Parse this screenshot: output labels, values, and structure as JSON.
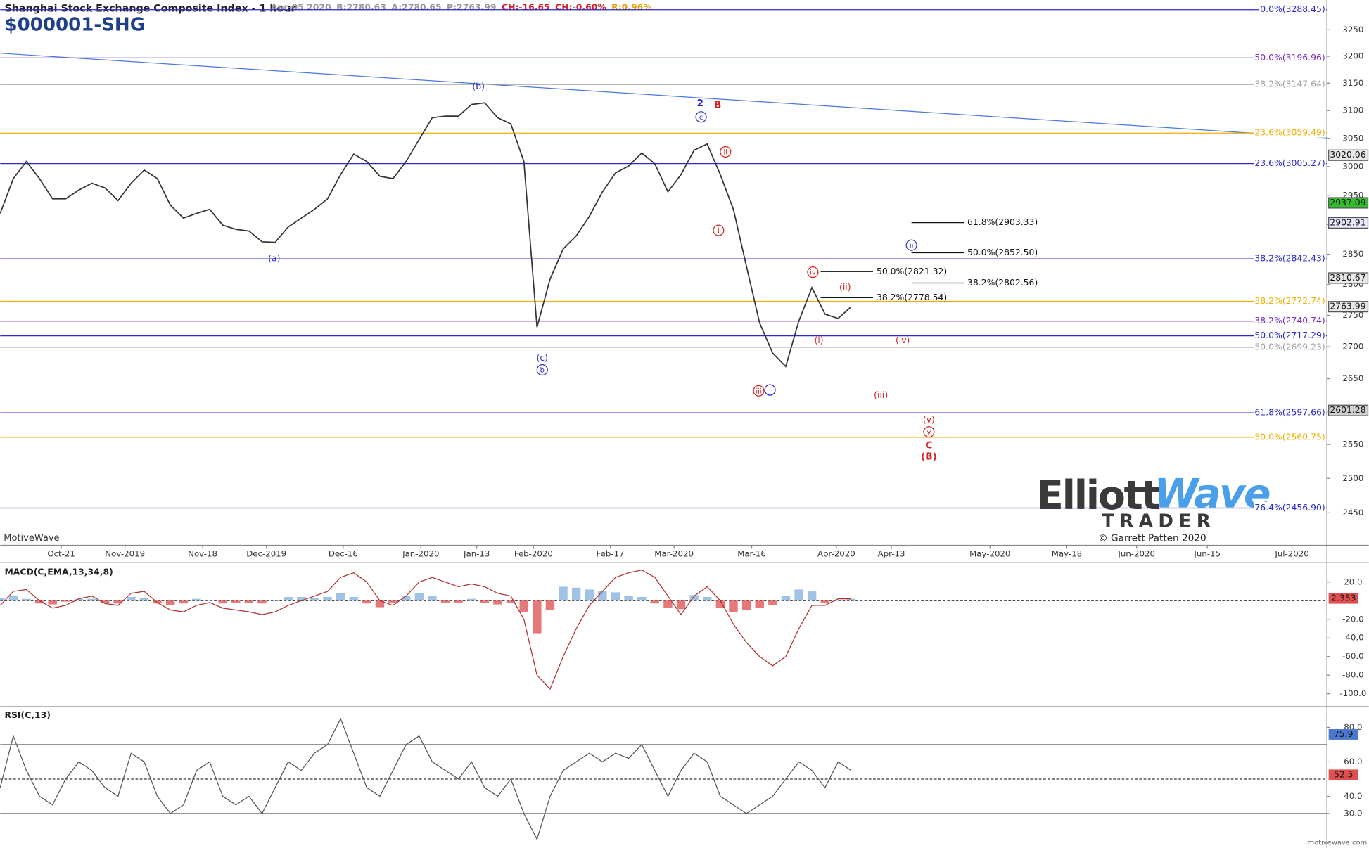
{
  "chart_data": [
    {
      "type": "line",
      "title": "Shanghai Stock Exchange Composite Index - 1 hour",
      "subtitle": "$000001-SHG",
      "quote": [
        {
          "text": "Apr-05 2020",
          "color": "#999999"
        },
        {
          "text": "B:2780.63",
          "color": "#999999"
        },
        {
          "text": "A:2780.65",
          "color": "#999999"
        },
        {
          "text": "P:2763.99",
          "color": "#999999"
        },
        {
          "text": "CH:-16.65",
          "color": "#d42020"
        },
        {
          "text": "CH:-0.60%",
          "color": "#d42020"
        },
        {
          "text": "R:0.96%",
          "color": "#e0a000"
        }
      ],
      "source": "MotiveWave",
      "log_scale": true,
      "ylim": [
        2404,
        3302
      ],
      "yticks": [
        2450,
        2500,
        2550,
        2600,
        2650,
        2700,
        2750,
        2800,
        2850,
        2900,
        2950,
        3000,
        3050,
        3100,
        3150,
        3200,
        3250
      ],
      "x_tick_labels": [
        "Oct-21",
        "Nov-2019",
        "Nov-18",
        "Dec-2019",
        "Dec-16",
        "Jan-2020",
        "Jan-13",
        "Feb-2020",
        "Feb-17",
        "Mar-2020",
        "Mar-16",
        "Apr-2020",
        "Apr-13",
        "May-2020",
        "May-18",
        "Jun-2020",
        "Jun-15",
        "Jul-2020"
      ],
      "series": [
        {
          "color": "#333333",
          "values": [
            2919,
            2979,
            3009,
            2979,
            2944,
            2944,
            2959,
            2971,
            2963,
            2941,
            2971,
            2994,
            2979,
            2933,
            2911,
            2919,
            2926,
            2899,
            2892,
            2889,
            2871,
            2870,
            2896,
            2911,
            2926,
            2944,
            2986,
            3022,
            3009,
            2983,
            2979,
            3009,
            3048,
            3087,
            3090,
            3090,
            3111,
            3114,
            3087,
            3076,
            3009,
            2731,
            2809,
            2859,
            2881,
            2914,
            2956,
            2989,
            3001,
            3024,
            3005,
            2956,
            2986,
            3029,
            3040,
            2986,
            2926,
            2830,
            2738,
            2690,
            2669,
            2741,
            2795,
            2752,
            2745,
            2764
          ]
        }
      ],
      "levels": [
        {
          "label": "0.0%(3288.45)",
          "value": 3288.45,
          "color": "#2a2ad0"
        },
        {
          "label": "50.0%(3196.96)",
          "value": 3196.96,
          "color": "#7a2cc0"
        },
        {
          "label": "38.2%(3147.64)",
          "value": 3147.64,
          "color": "#a0a0a0"
        },
        {
          "label": "23.6%(3059.49)",
          "value": 3059.49,
          "color": "#f0b000"
        },
        {
          "label": "23.6%(3005.27)",
          "value": 3005.27,
          "color": "#2a2ad0"
        },
        {
          "label": "38.2%(2842.43)",
          "value": 2842.43,
          "color": "#2a2ad0"
        },
        {
          "label": "38.2%(2772.74)",
          "value": 2772.74,
          "color": "#f0b000"
        },
        {
          "label": "38.2%(2740.74)",
          "value": 2740.74,
          "color": "#7a2cc0"
        },
        {
          "label": "50.0%(2717.29)",
          "value": 2717.29,
          "color": "#2a2ad0"
        },
        {
          "label": "50.0%(2699.23)",
          "value": 2699.23,
          "color": "#a0a0a0"
        },
        {
          "label": "61.8%(2597.66)",
          "value": 2597.66,
          "color": "#2a2ad0"
        },
        {
          "label": "50.0%(2560.75)",
          "value": 2560.75,
          "color": "#f0b000"
        },
        {
          "label": "76.4%(2456.90)",
          "value": 2456.9,
          "color": "#2a2ad0"
        }
      ],
      "targets": [
        {
          "label": "61.8%(2903.33)",
          "value": 2903.33
        },
        {
          "label": "50.0%(2852.50)",
          "value": 2852.5
        },
        {
          "label": "38.2%(2802.56)",
          "value": 2802.56
        },
        {
          "label": "50.0%(2821.32)",
          "value": 2821.32
        },
        {
          "label": "38.2%(2778.54)",
          "value": 2778.54
        }
      ],
      "price_tags": [
        {
          "value": 3020.06,
          "color": "#e8e8e8"
        },
        {
          "value": 2937.09,
          "color": "#30c030"
        },
        {
          "value": 2902.91,
          "color": "#e8e8ff"
        },
        {
          "value": 2810.67,
          "color": "#e8e8e8"
        },
        {
          "value": 2763.99,
          "color": "#e8e8e8"
        },
        {
          "value": 2601.28,
          "color": "#d0d0d0"
        }
      ],
      "wave_labels": [
        {
          "text": "(b)",
          "color": "#2a2ad0",
          "circled": false
        },
        {
          "text": "(a)",
          "color": "#2a2ad0",
          "circled": false
        },
        {
          "text": "(c)",
          "color": "#2a2ad0",
          "circled": false
        },
        {
          "text": "b",
          "color": "#2a2ad0",
          "circled": true
        },
        {
          "text": "2",
          "color": "#2a2ad0",
          "circled": false
        },
        {
          "text": "c",
          "color": "#2a2ad0",
          "circled": true
        },
        {
          "text": "B",
          "color": "#d42020",
          "circled": false
        },
        {
          "text": "ii",
          "color": "#d42020",
          "circled": true
        },
        {
          "text": "i",
          "color": "#d42020",
          "circled": true
        },
        {
          "text": "iii",
          "color": "#d42020",
          "circled": true
        },
        {
          "text": "i",
          "color": "#2a2ad0",
          "circled": true
        },
        {
          "text": "iv",
          "color": "#d42020",
          "circled": true
        },
        {
          "text": "(ii)",
          "color": "#d42020",
          "circled": false
        },
        {
          "text": "(i)",
          "color": "#d42020",
          "circled": false
        },
        {
          "text": "(iv)",
          "color": "#d42020",
          "circled": false
        },
        {
          "text": "(iii)",
          "color": "#d42020",
          "circled": false
        },
        {
          "text": "(v)",
          "color": "#d42020",
          "circled": false
        },
        {
          "text": "v",
          "color": "#d42020",
          "circled": true
        },
        {
          "text": "C",
          "color": "#d42020",
          "circled": false
        },
        {
          "text": "(B)",
          "color": "#d42020",
          "circled": false
        },
        {
          "text": "ii",
          "color": "#2a2ad0",
          "circled": true
        }
      ]
    },
    {
      "type": "bar",
      "title": "MACD(C,EMA,13,34,8)",
      "ylim": [
        -112,
        38
      ],
      "yticks": [
        {
          "value": 20,
          "label": "20.0"
        },
        {
          "value": -20,
          "label": "-20.0"
        },
        {
          "value": -40,
          "label": "-40.0"
        },
        {
          "value": -60,
          "label": "-60.0"
        },
        {
          "value": -80,
          "label": "-80.0"
        },
        {
          "value": -100,
          "label": "-100.0"
        }
      ],
      "midline": 0,
      "tag": {
        "value": 2.353,
        "color": "#e05050"
      },
      "series": [
        {
          "type": "bar",
          "color": "#8fb8e0",
          "negative_color": "#e06060",
          "values": [
            3,
            5,
            2,
            -3,
            -4,
            -1,
            2,
            2,
            -2,
            -3,
            4,
            3,
            -3,
            -5,
            -3,
            2,
            1,
            -3,
            -2,
            -2,
            -3,
            1,
            4,
            4,
            3,
            4,
            8,
            4,
            -3,
            -7,
            -2,
            5,
            8,
            5,
            -2,
            -2,
            2,
            -2,
            -4,
            -2,
            -12,
            -35,
            -10,
            15,
            14,
            12,
            10,
            9,
            5,
            4,
            -3,
            -8,
            -9,
            6,
            4,
            -8,
            -12,
            -10,
            -8,
            -5,
            5,
            12,
            10,
            -2,
            1,
            2
          ]
        },
        {
          "type": "line",
          "color": "#b03030",
          "values": [
            -5,
            10,
            12,
            0,
            -8,
            -5,
            2,
            5,
            -3,
            -5,
            8,
            10,
            -2,
            -10,
            -12,
            -5,
            -2,
            -8,
            -10,
            -12,
            -15,
            -12,
            -5,
            0,
            5,
            10,
            25,
            30,
            20,
            0,
            -5,
            5,
            20,
            25,
            20,
            15,
            18,
            15,
            8,
            5,
            -20,
            -80,
            -95,
            -60,
            -30,
            -5,
            10,
            25,
            30,
            33,
            25,
            5,
            -15,
            5,
            15,
            0,
            -25,
            -45,
            -60,
            -70,
            -60,
            -30,
            -5,
            -5,
            2,
            2
          ]
        }
      ]
    },
    {
      "type": "line",
      "title": "RSI(C,13)",
      "ylim": [
        11,
        91
      ],
      "yticks": [
        {
          "value": 80,
          "label": "80.0"
        },
        {
          "value": 60,
          "label": "60.0"
        },
        {
          "value": 40,
          "label": "40.0"
        },
        {
          "value": 30,
          "label": "30.0"
        }
      ],
      "bands": [
        30,
        70
      ],
      "midline": 50,
      "tags": [
        {
          "value": 75.9,
          "color": "#4a78d0"
        },
        {
          "value": 52.5,
          "color": "#e05050"
        }
      ],
      "series": [
        {
          "type": "line",
          "color": "#555555",
          "values": [
            45,
            75,
            55,
            40,
            35,
            50,
            60,
            55,
            45,
            40,
            65,
            60,
            40,
            30,
            35,
            55,
            60,
            40,
            35,
            40,
            30,
            45,
            60,
            55,
            65,
            70,
            85,
            65,
            45,
            40,
            55,
            70,
            75,
            60,
            55,
            50,
            60,
            45,
            40,
            50,
            30,
            15,
            40,
            55,
            60,
            65,
            60,
            65,
            62,
            70,
            55,
            40,
            55,
            65,
            60,
            40,
            35,
            30,
            35,
            40,
            50,
            60,
            55,
            45,
            60,
            55
          ]
        }
      ]
    }
  ],
  "branding": {
    "logo_left": "Elliott",
    "logo_right": "Wave",
    "logo_sub": "TRADER",
    "copyright": "© Garrett Patten 2020",
    "site": "motivewave.com"
  }
}
